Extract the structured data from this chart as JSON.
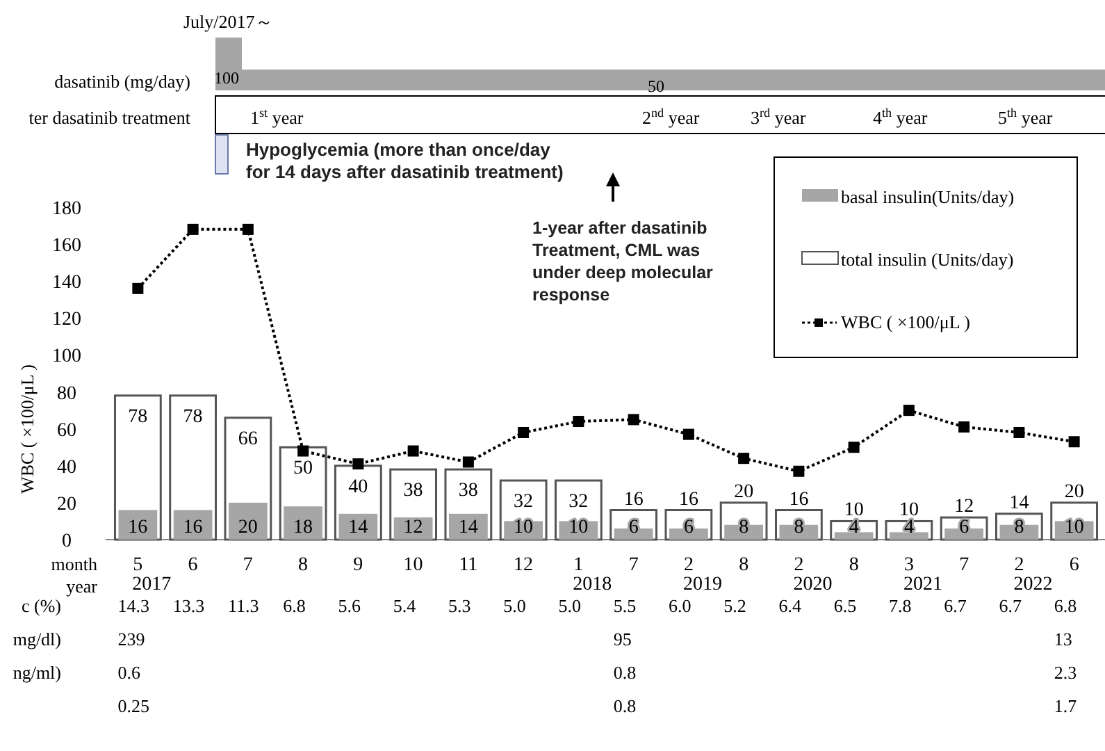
{
  "chart_data": [
    {
      "type": "other",
      "annotations": [
        "July/2017～",
        "dasatinib (mg/day)",
        "100",
        "50",
        "ter dasatinib treatment",
        "1$^{st}$ year",
        "2$^{nd}$ year",
        "3$^{rd}$ year",
        "4$^{th}$ year",
        "5$^{th}$ year"
      ]
    },
    {
      "type": "bar",
      "categories": [
        "5\n2017",
        "6",
        "7",
        "8",
        "9",
        "10",
        "11",
        "12",
        "1\n2018",
        "7",
        "2\n2019",
        "8",
        "2\n2020",
        "8",
        "3\n2021",
        "7",
        "2\n2022",
        "6"
      ],
      "series": [
        {
          "name": "basal insulin(Units/day)",
          "color": "#a6a6a6",
          "values": [
            16,
            16,
            20,
            18,
            14,
            12,
            14,
            10,
            10,
            6,
            6,
            8,
            8,
            4,
            4,
            6,
            8,
            10
          ],
          "value_labels": [
            "16",
            "16",
            "20",
            "18",
            "14",
            "12",
            "14",
            "10",
            "10",
            "6",
            "6",
            "8",
            "8",
            "4",
            "4",
            "6",
            "8",
            "10"
          ]
        },
        {
          "name": "total insulin (Units/day)",
          "color": "#ffffff",
          "values": [
            78,
            78,
            66,
            50,
            40,
            38,
            38,
            32,
            32,
            16,
            16,
            20,
            16,
            10,
            10,
            12,
            14,
            20
          ],
          "value_labels": [
            "78",
            "78",
            "66",
            "50",
            "40",
            "38",
            "38",
            "32",
            "32",
            "16",
            "16",
            "20",
            "16",
            "10",
            "10",
            "12",
            "14",
            "20"
          ]
        },
        {
          "name": "WBC ( ×100/μL )",
          "type": "line",
          "color": "#000000",
          "marker": "square",
          "line_style": "dotted",
          "values": [
            136,
            168,
            168,
            48,
            41,
            48,
            42,
            58,
            64,
            65,
            57,
            44,
            37,
            50,
            70,
            61,
            58,
            53
          ]
        }
      ],
      "ylim": [
        0,
        180
      ],
      "yticks": [
        0,
        20,
        40,
        60,
        80,
        100,
        120,
        140,
        160,
        180
      ],
      "ylabel": "WBC ( ×100/μL )",
      "xlabel": "month\nyear",
      "legend": "top right",
      "grid": false,
      "annotations": [
        "Hypoglycemia (more than once/day\nfor 14 days after dasatinib treatment)",
        "1-year after dasatinib\nTreatment, CML was\nunder deep molecular\nresponse"
      ]
    },
    {
      "type": "other",
      "y_categories": [
        "c (%)",
        "mg/dl)",
        "ng/ml)",
        null
      ],
      "cell_labels": [
        [
          "14.3",
          "13.3",
          "11.3",
          "6.8",
          "5.6",
          "5.4",
          "5.3",
          "5.0",
          "5.0",
          "5.5",
          "6.0",
          "5.2",
          "6.4",
          "6.5",
          "7.8",
          "6.7",
          "6.7",
          "6.8"
        ],
        [
          "239",
          null,
          null,
          null,
          null,
          null,
          null,
          null,
          null,
          "95",
          null,
          null,
          null,
          null,
          null,
          null,
          null,
          "13"
        ],
        [
          "0.6",
          null,
          null,
          null,
          null,
          null,
          null,
          null,
          null,
          "0.8",
          null,
          null,
          null,
          null,
          null,
          null,
          null,
          "2.3"
        ],
        [
          "0.25",
          null,
          null,
          null,
          null,
          null,
          null,
          null,
          null,
          "0.8",
          null,
          null,
          null,
          null,
          null,
          null,
          null,
          "1.7"
        ]
      ]
    }
  ]
}
